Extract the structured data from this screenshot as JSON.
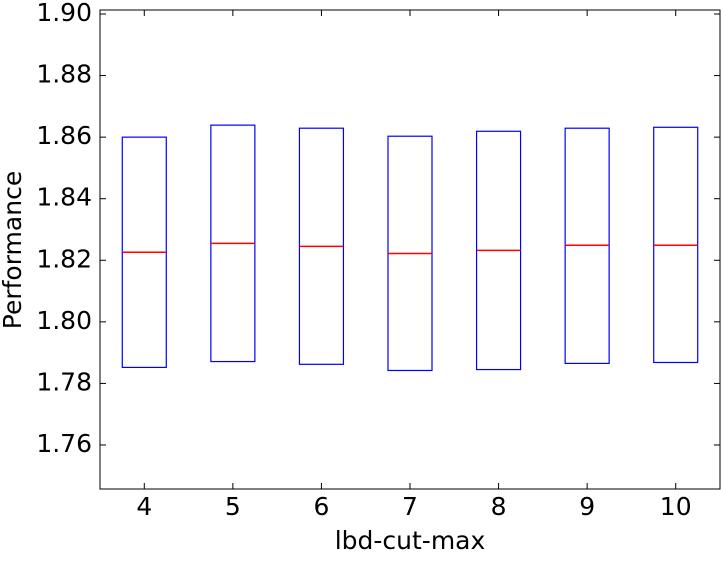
{
  "chart_data": {
    "type": "box",
    "x_label": "lbd-cut-max",
    "y_label": "Performance",
    "categories": [
      "4",
      "5",
      "6",
      "7",
      "8",
      "9",
      "10"
    ],
    "q1": [
      1.7852,
      1.7871,
      1.7862,
      1.7842,
      1.7845,
      1.7865,
      1.7868
    ],
    "median": [
      1.8226,
      1.8255,
      1.8245,
      1.8222,
      1.8232,
      1.8249,
      1.8249
    ],
    "q3": [
      1.86,
      1.8639,
      1.8629,
      1.8603,
      1.8619,
      1.8629,
      1.8632
    ],
    "box_color": "#0000ff",
    "median_color": "#ff0000",
    "ylim": [
      1.7457,
      1.9013
    ],
    "yticks": [
      {
        "value": 1.76,
        "label": "1.76"
      },
      1.78,
      {
        "value": 1.8,
        "label": "1.80"
      },
      1.82,
      1.84,
      1.86,
      1.88,
      {
        "value": 1.9,
        "label": "1.90"
      }
    ]
  }
}
